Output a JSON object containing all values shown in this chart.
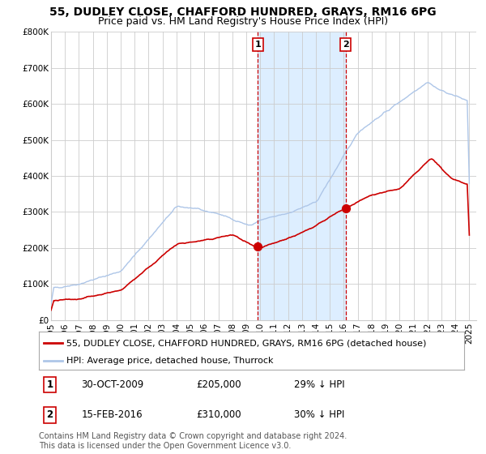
{
  "title": "55, DUDLEY CLOSE, CHAFFORD HUNDRED, GRAYS, RM16 6PG",
  "subtitle": "Price paid vs. HM Land Registry's House Price Index (HPI)",
  "ylim": [
    0,
    800000
  ],
  "yticks": [
    0,
    100000,
    200000,
    300000,
    400000,
    500000,
    600000,
    700000,
    800000
  ],
  "ytick_labels": [
    "£0",
    "£100K",
    "£200K",
    "£300K",
    "£400K",
    "£500K",
    "£600K",
    "£700K",
    "£800K"
  ],
  "hpi_color": "#aec6e8",
  "price_color": "#cc0000",
  "shade_color": "#ddeeff",
  "vline_color": "#cc0000",
  "grid_color": "#cccccc",
  "background_color": "#ffffff",
  "transaction1_date": 2009.83,
  "transaction1_price": 205000,
  "transaction1_label": "1",
  "transaction2_date": 2016.12,
  "transaction2_price": 310000,
  "transaction2_label": "2",
  "legend_entries": [
    "55, DUDLEY CLOSE, CHAFFORD HUNDRED, GRAYS, RM16 6PG (detached house)",
    "HPI: Average price, detached house, Thurrock"
  ],
  "table_rows": [
    [
      "1",
      "30-OCT-2009",
      "£205,000",
      "29% ↓ HPI"
    ],
    [
      "2",
      "15-FEB-2016",
      "£310,000",
      "30% ↓ HPI"
    ]
  ],
  "footnote": "Contains HM Land Registry data © Crown copyright and database right 2024.\nThis data is licensed under the Open Government Licence v3.0.",
  "title_fontsize": 10,
  "subtitle_fontsize": 9,
  "tick_fontsize": 7.5,
  "legend_fontsize": 8,
  "table_fontsize": 8.5,
  "footnote_fontsize": 7
}
